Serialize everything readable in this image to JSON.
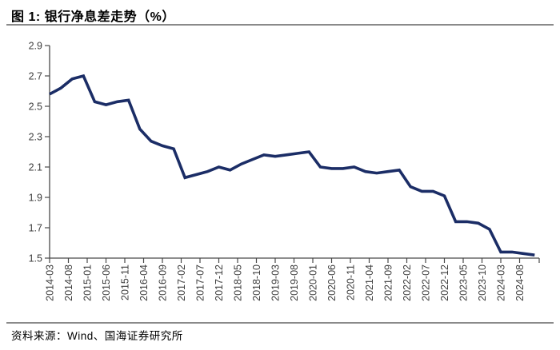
{
  "page": {
    "title": "图 1:  银行净息差走势（%）",
    "source": "资料来源：Wind、国海证券研究所"
  },
  "chart_data": {
    "type": "line",
    "title": "银行净息差走势（%）",
    "series_name": "银行净息差",
    "unit": "%",
    "x": [
      "2014-03",
      "2014-06",
      "2014-09",
      "2014-12",
      "2015-03",
      "2015-06",
      "2015-09",
      "2015-12",
      "2016-03",
      "2016-06",
      "2016-09",
      "2016-12",
      "2017-03",
      "2017-06",
      "2017-09",
      "2017-12",
      "2018-03",
      "2018-06",
      "2018-09",
      "2018-12",
      "2019-03",
      "2019-06",
      "2019-09",
      "2019-12",
      "2020-03",
      "2020-06",
      "2020-09",
      "2020-12",
      "2021-03",
      "2021-06",
      "2021-09",
      "2021-12",
      "2022-03",
      "2022-06",
      "2022-09",
      "2022-12",
      "2023-03",
      "2023-06",
      "2023-09",
      "2023-12",
      "2024-03",
      "2024-06",
      "2024-09",
      "2024-12"
    ],
    "values": [
      2.58,
      2.62,
      2.68,
      2.7,
      2.53,
      2.51,
      2.53,
      2.54,
      2.35,
      2.27,
      2.24,
      2.22,
      2.03,
      2.05,
      2.07,
      2.1,
      2.08,
      2.12,
      2.15,
      2.18,
      2.17,
      2.18,
      2.19,
      2.2,
      2.1,
      2.09,
      2.09,
      2.1,
      2.07,
      2.06,
      2.07,
      2.08,
      1.97,
      1.94,
      1.94,
      1.91,
      1.74,
      1.74,
      1.73,
      1.69,
      1.54,
      1.54,
      1.53,
      1.52
    ],
    "x_tick_labels": [
      "2014-03",
      "2014-08",
      "2015-01",
      "2015-06",
      "2015-11",
      "2016-04",
      "2016-09",
      "2017-02",
      "2017-07",
      "2017-12",
      "2018-05",
      "2018-10",
      "2019-03",
      "2019-08",
      "2020-01",
      "2020-06",
      "2020-11",
      "2021-04",
      "2021-09",
      "2022-02",
      "2022-07",
      "2022-12",
      "2023-05",
      "2023-10",
      "2024-03",
      "2024-08"
    ],
    "y_ticks": [
      1.5,
      1.7,
      1.9,
      2.1,
      2.3,
      2.5,
      2.7,
      2.9
    ],
    "ylim": [
      1.5,
      2.9
    ],
    "grid": false,
    "legend": false,
    "line_color": "#1b2d66",
    "axis_color": "#4a4a4a",
    "tick_label_color": "#3d3d3d"
  }
}
